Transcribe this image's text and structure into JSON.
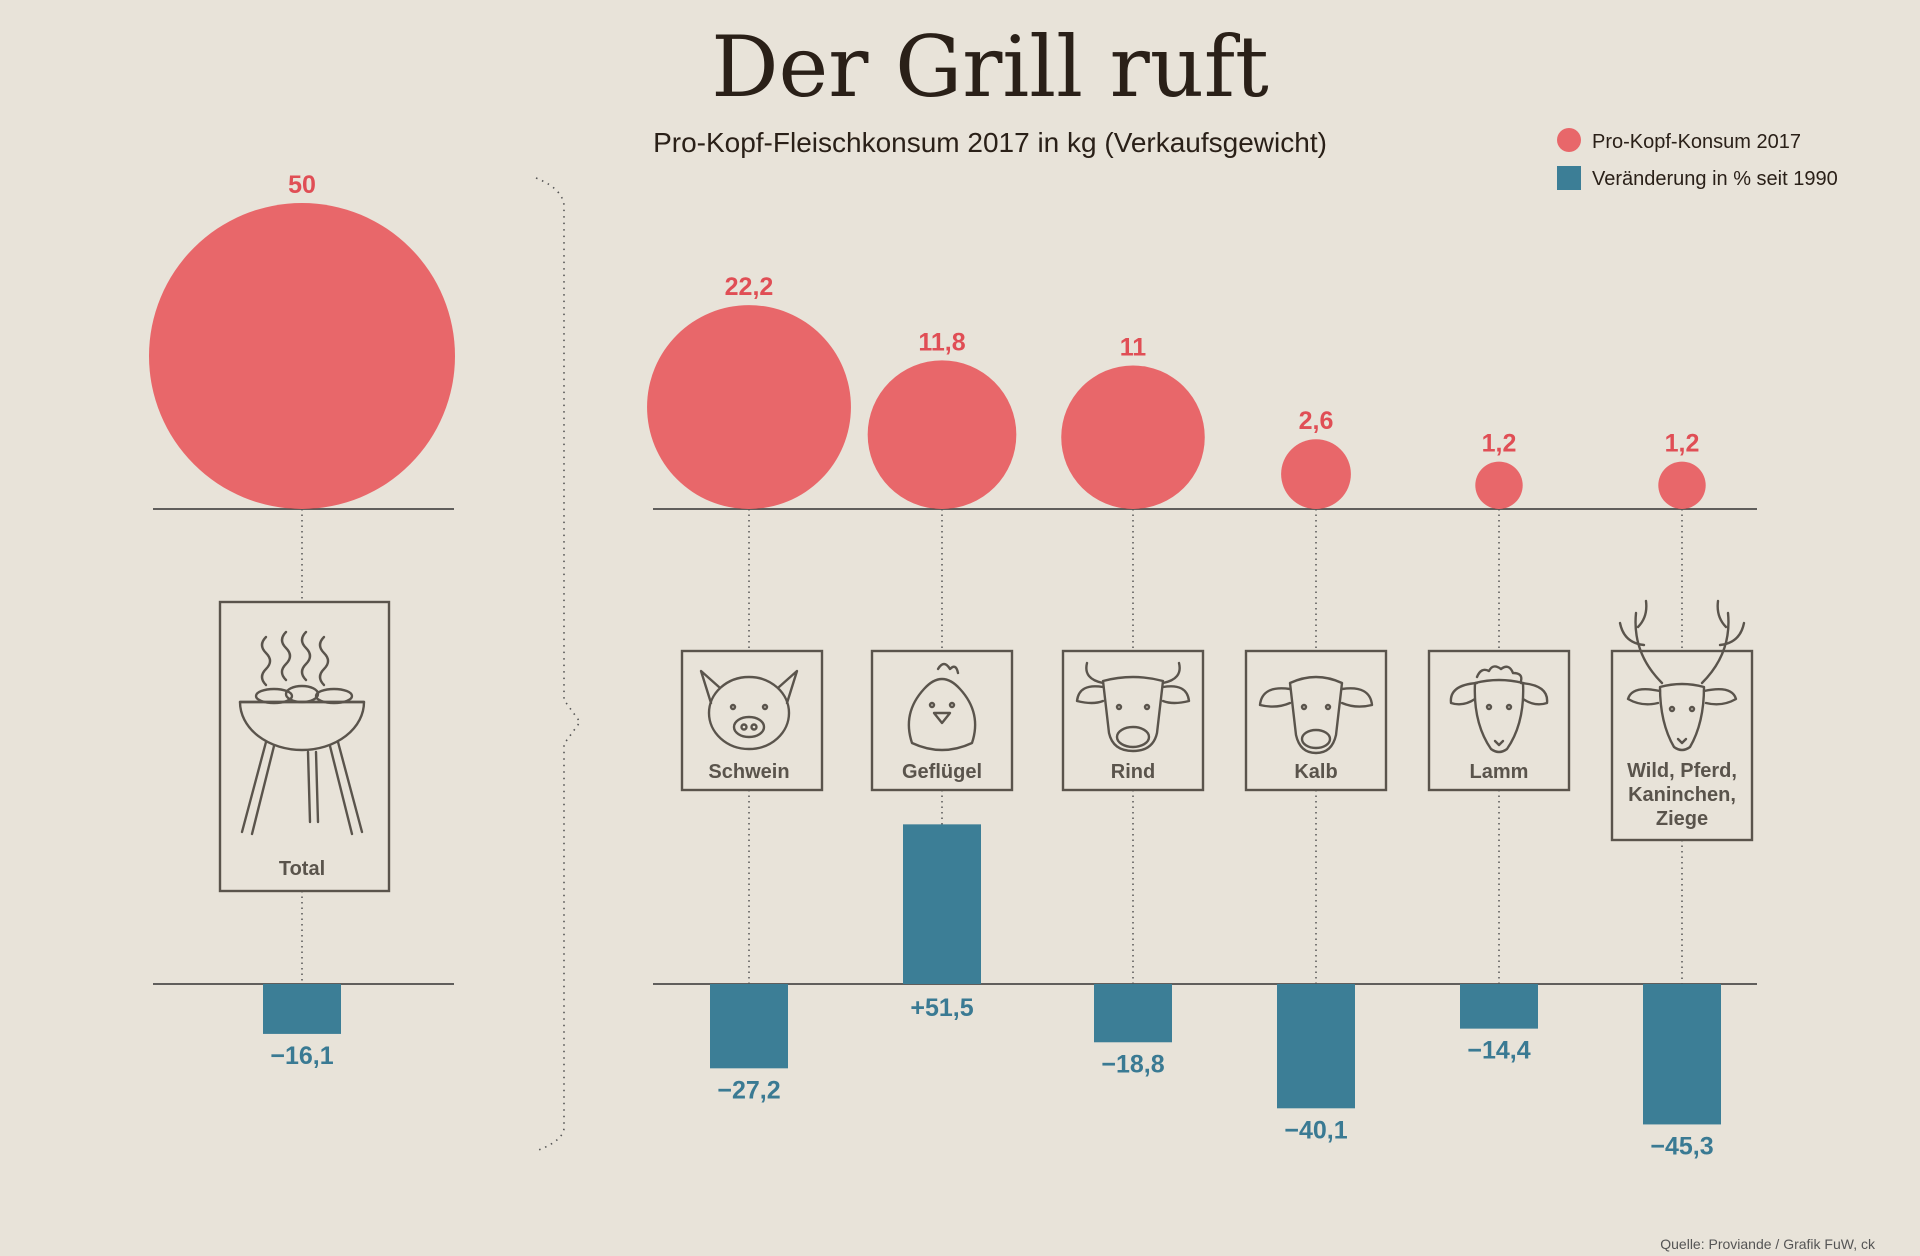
{
  "title": "Der Grill ruft",
  "subtitle": "Pro-Kopf-Fleischkonsum 2017 in kg (Verkaufsgewicht)",
  "legend": [
    {
      "label": "Pro-Kopf-Konsum 2017",
      "color": "#e8676a",
      "shape": "circle"
    },
    {
      "label": "Veränderung in % seit 1990",
      "color": "#3c7e96",
      "shape": "square"
    }
  ],
  "source": "Quelle: Proviande / Grafik FuW, ck",
  "chart_data": {
    "type": "bubble+bar",
    "title": "Der Grill ruft",
    "subtitle": "Pro-Kopf-Fleischkonsum 2017 in kg (Verkaufsgewicht)",
    "categories": [
      "Total",
      "Schwein",
      "Geflügel",
      "Rind",
      "Kalb",
      "Lamm",
      "Wild, Pferd, Kaninchen, Ziege"
    ],
    "category_lines": [
      [
        "Total"
      ],
      [
        "Schwein"
      ],
      [
        "Geflügel"
      ],
      [
        "Rind"
      ],
      [
        "Kalb"
      ],
      [
        "Lamm"
      ],
      [
        "Wild, Pferd,",
        "Kaninchen,",
        "Ziege"
      ]
    ],
    "icons": [
      "grill-icon",
      "pig-icon",
      "chicken-icon",
      "cow-icon",
      "calf-icon",
      "sheep-icon",
      "deer-icon"
    ],
    "series": [
      {
        "name": "Pro-Kopf-Konsum 2017",
        "unit": "kg",
        "values": [
          50,
          22.2,
          11.8,
          11,
          2.6,
          1.2,
          1.2
        ],
        "labels": [
          "50",
          "22,2",
          "11,8",
          "11",
          "2,6",
          "1,2",
          "1,2"
        ]
      },
      {
        "name": "Veränderung in % seit 1990",
        "unit": "%",
        "values": [
          -16.1,
          -27.2,
          51.5,
          -18.8,
          -40.1,
          -14.4,
          -45.3
        ],
        "labels": [
          "−16,1",
          "−27,2",
          "+51,5",
          "−18,8",
          "−40,1",
          "−14,4",
          "−45,3"
        ]
      }
    ]
  }
}
